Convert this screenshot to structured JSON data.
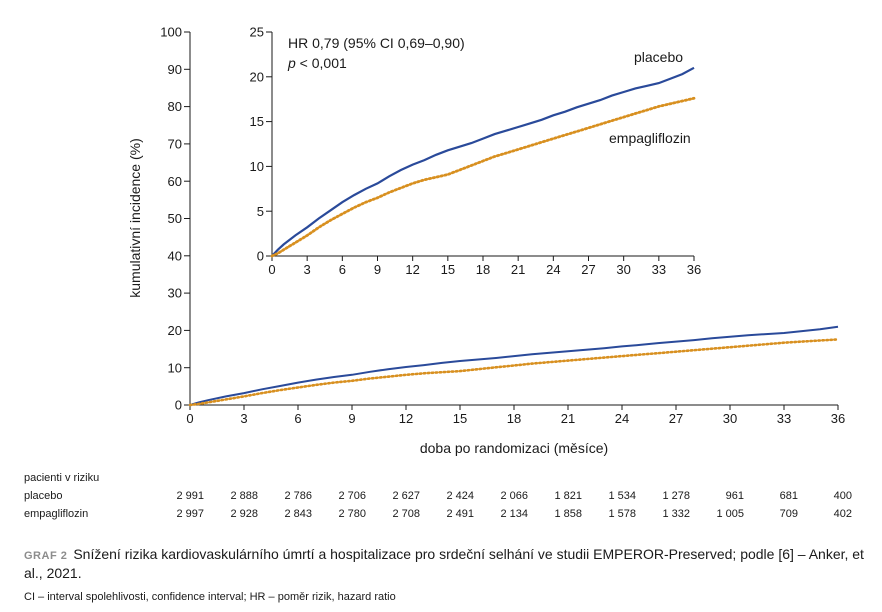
{
  "chart_data": {
    "type": "line",
    "xlabel": "doba po randomizaci (měsíce)",
    "ylabel": "kumulativní incidence (%)",
    "xlim": [
      0,
      36
    ],
    "ylim": [
      0,
      100
    ],
    "x_ticks": [
      0,
      3,
      6,
      9,
      12,
      15,
      18,
      21,
      24,
      27,
      30,
      33,
      36
    ],
    "y_ticks": [
      0,
      10,
      20,
      30,
      40,
      50,
      60,
      70,
      80,
      90,
      100
    ],
    "series": [
      {
        "name": "placebo",
        "color": "#2a4a9a",
        "style": "solid",
        "x": [
          0,
          0.5,
          1,
          2,
          3,
          4,
          5,
          6,
          7,
          8,
          9,
          10,
          11,
          12,
          13,
          14,
          15,
          16,
          17,
          18,
          19,
          20,
          21,
          22,
          23,
          24,
          25,
          26,
          27,
          28,
          29,
          30,
          31,
          32,
          33,
          34,
          35,
          36
        ],
        "y": [
          0,
          0.7,
          1.3,
          2.3,
          3.2,
          4.2,
          5.1,
          6.0,
          6.8,
          7.5,
          8.1,
          8.9,
          9.6,
          10.2,
          10.7,
          11.3,
          11.8,
          12.2,
          12.6,
          13.1,
          13.6,
          14.0,
          14.4,
          14.8,
          15.2,
          15.7,
          16.1,
          16.6,
          17.0,
          17.4,
          17.9,
          18.3,
          18.7,
          19.0,
          19.3,
          19.8,
          20.3,
          21.0
        ]
      },
      {
        "name": "empagliflozin",
        "color": "#d89020",
        "style": "dotted",
        "x": [
          0,
          0.5,
          1,
          2,
          3,
          4,
          5,
          6,
          7,
          8,
          9,
          10,
          11,
          12,
          13,
          14,
          15,
          16,
          17,
          18,
          19,
          20,
          21,
          22,
          23,
          24,
          25,
          26,
          27,
          28,
          29,
          30,
          31,
          32,
          33,
          34,
          35,
          36
        ],
        "y": [
          0,
          0.3,
          0.7,
          1.5,
          2.3,
          3.2,
          4.0,
          4.7,
          5.4,
          6.0,
          6.5,
          7.1,
          7.6,
          8.1,
          8.5,
          8.8,
          9.1,
          9.6,
          10.1,
          10.6,
          11.1,
          11.5,
          11.9,
          12.3,
          12.7,
          13.1,
          13.5,
          13.9,
          14.3,
          14.7,
          15.1,
          15.5,
          15.9,
          16.3,
          16.7,
          17.0,
          17.3,
          17.6
        ]
      }
    ],
    "inset": {
      "ylim": [
        0,
        25
      ],
      "y_ticks": [
        0,
        5,
        10,
        15,
        20,
        25
      ],
      "x_ticks": [
        0,
        3,
        6,
        9,
        12,
        15,
        18,
        21,
        24,
        27,
        30,
        33,
        36
      ],
      "annotation_hr": "HR 0,79 (95% CI 0,69–0,90)",
      "annotation_p_italic": "p",
      "annotation_p_rest": " < 0,001",
      "label_placebo": "placebo",
      "label_empagliflozin": "empagliflozin"
    }
  },
  "risk_table": {
    "title": "pacienti v riziku",
    "rows": [
      {
        "label": "placebo",
        "values": [
          "2 991",
          "2 888",
          "2 786",
          "2 706",
          "2 627",
          "2 424",
          "2 066",
          "1 821",
          "1 534",
          "1 278",
          "961",
          "681",
          "400"
        ]
      },
      {
        "label": "empagliflozin",
        "values": [
          "2 997",
          "2 928",
          "2 843",
          "2 780",
          "2 708",
          "2 491",
          "2 134",
          "1 858",
          "1 578",
          "1 332",
          "1 005",
          "709",
          "402"
        ]
      }
    ]
  },
  "caption": {
    "tag": "GRAF 2",
    "text": "Snížení rizika kardiovaskulárního úmrtí a hospitalizace pro srdeční selhání ve studii EMPEROR-Preserved; podle [6] – Anker, et al., 2021.",
    "footnote": "CI – interval spolehlivosti, confidence interval; HR – poměr rizik, hazard ratio"
  }
}
